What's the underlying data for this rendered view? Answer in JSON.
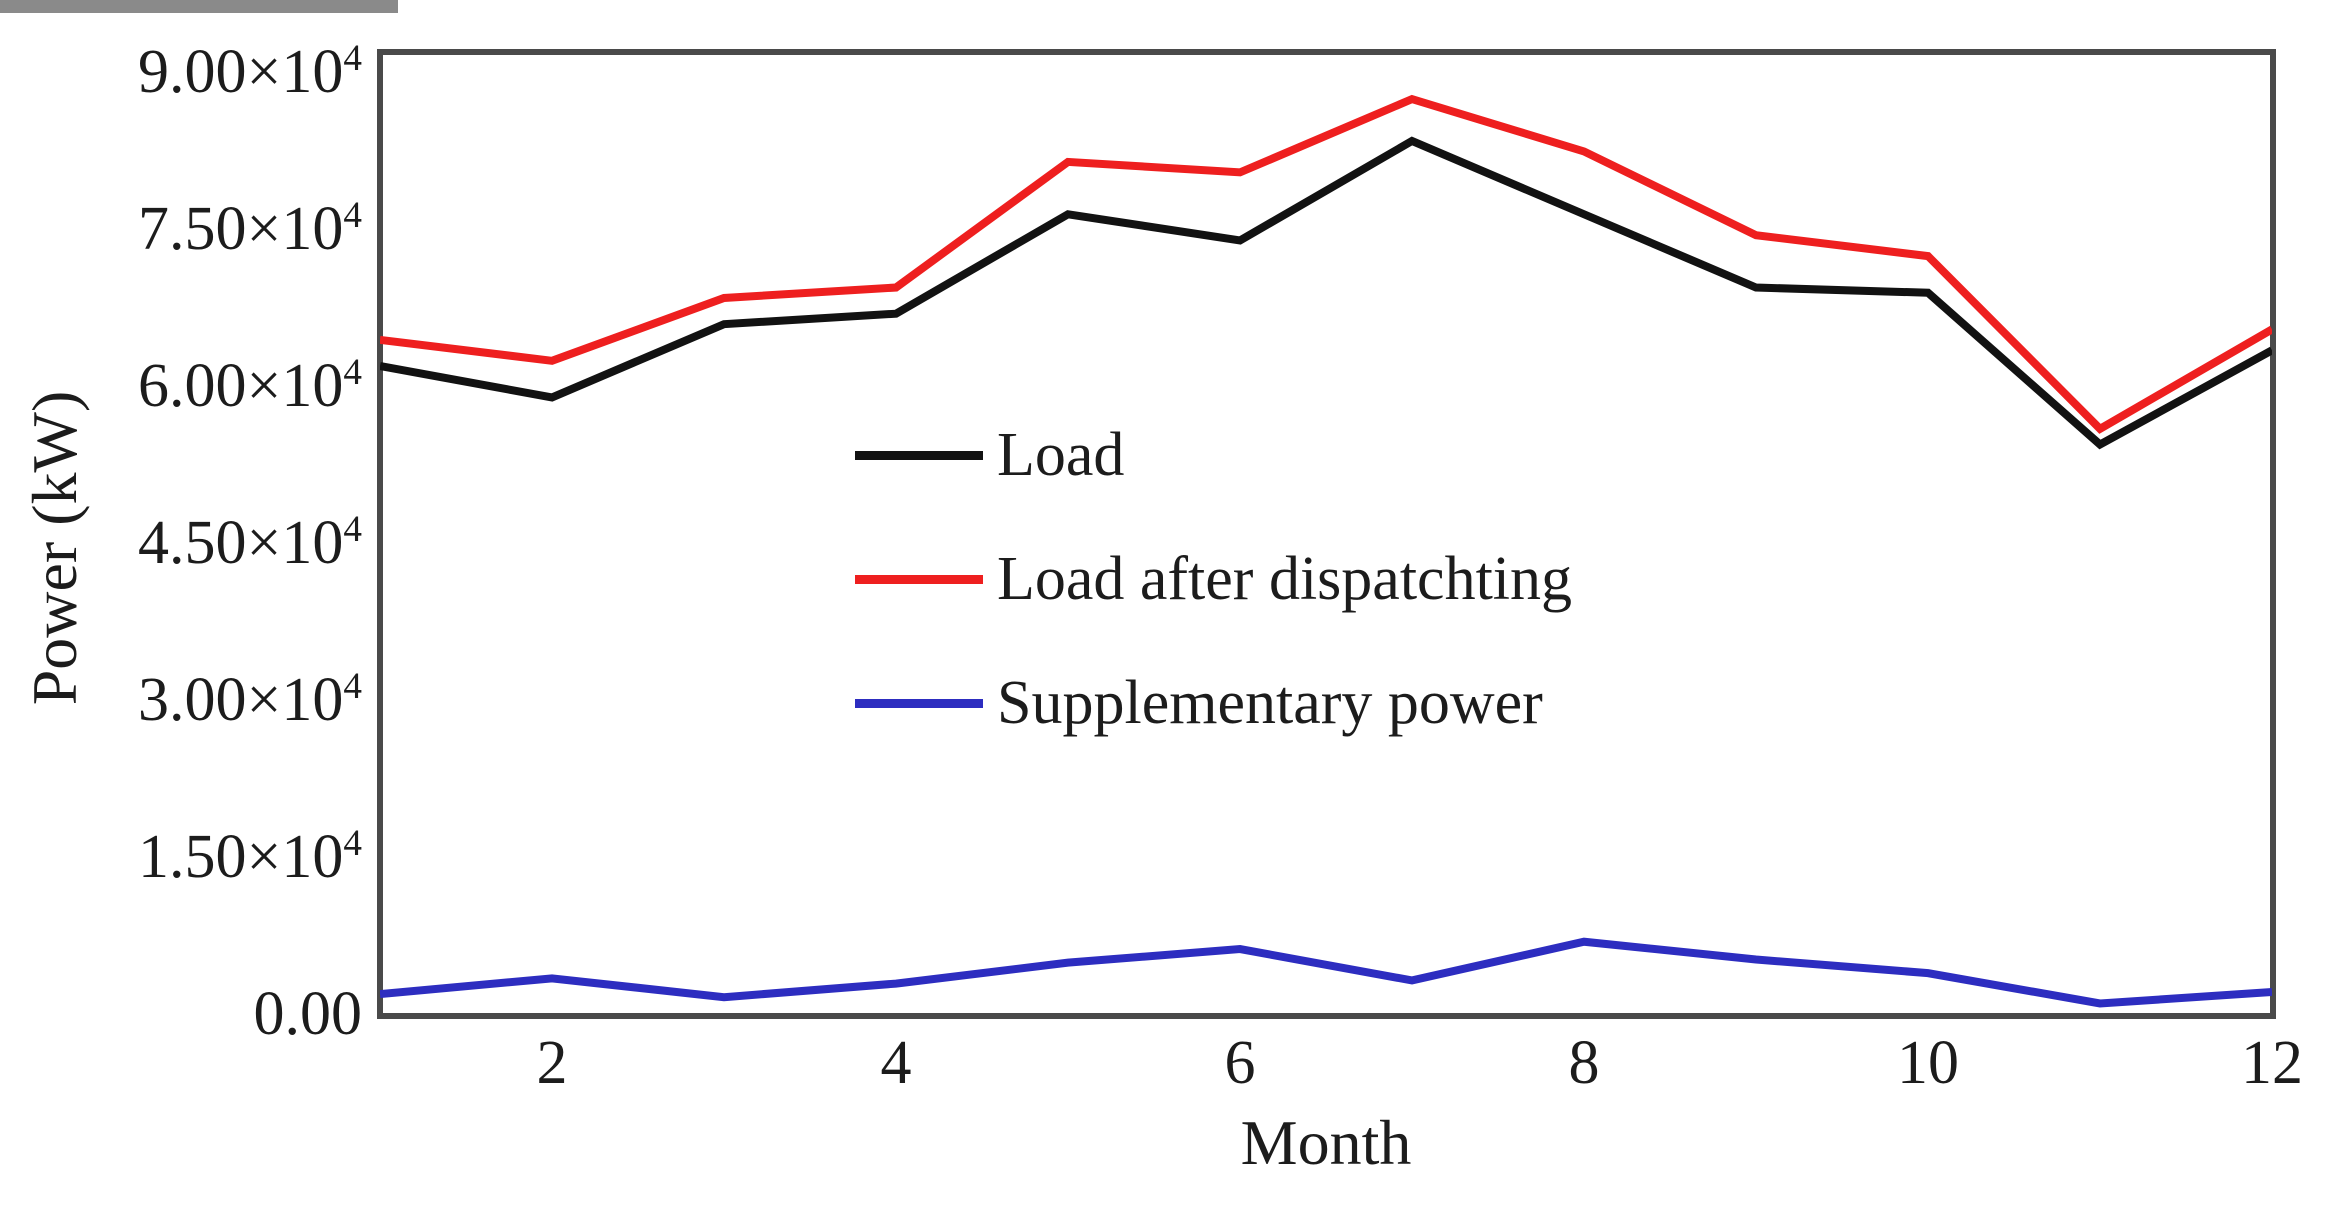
{
  "figure": {
    "background": "#ffffff",
    "frame_color": "#4a4a4a",
    "text_color": "#1c1c1c"
  },
  "chart_data": {
    "type": "line",
    "title": "",
    "xlabel": "Month",
    "ylabel": "Power (kW)",
    "x": [
      1,
      2,
      3,
      4,
      5,
      6,
      7,
      8,
      9,
      10,
      11,
      12
    ],
    "series": [
      {
        "name": "Load",
        "color": "#121212",
        "values": [
          62000,
          59000,
          66000,
          67000,
          76500,
          74000,
          83500,
          76500,
          69500,
          69000,
          54500,
          63500
        ]
      },
      {
        "name": "Load after dispatchting",
        "color": "#ee1f1f",
        "values": [
          64500,
          62500,
          68500,
          69500,
          81500,
          80500,
          87500,
          82500,
          74500,
          72500,
          56000,
          65500
        ]
      },
      {
        "name": "Supplementary power",
        "color": "#2d2dc0",
        "values": [
          2000,
          3500,
          1700,
          3000,
          5000,
          6300,
          3300,
          7000,
          5300,
          4000,
          1100,
          2200
        ]
      }
    ],
    "xlim": [
      1,
      12
    ],
    "ylim": [
      0,
      92000
    ],
    "x_ticks": [
      {
        "value": 2,
        "label": "2"
      },
      {
        "value": 4,
        "label": "4"
      },
      {
        "value": 6,
        "label": "6"
      },
      {
        "value": 8,
        "label": "8"
      },
      {
        "value": 10,
        "label": "10"
      },
      {
        "value": 12,
        "label": "12"
      }
    ],
    "y_ticks": [
      {
        "value": 0,
        "label": "0.00"
      },
      {
        "value": 15000,
        "label": "1.50×10^4"
      },
      {
        "value": 30000,
        "label": "3.00×10^4"
      },
      {
        "value": 45000,
        "label": "4.50×10^4"
      },
      {
        "value": 60000,
        "label": "6.00×10^4"
      },
      {
        "value": 75000,
        "label": "7.50×10^4"
      },
      {
        "value": 90000,
        "label": "9.00×10^4"
      }
    ],
    "grid": false,
    "legend_position": "inside-center-left",
    "line_width": 8
  }
}
